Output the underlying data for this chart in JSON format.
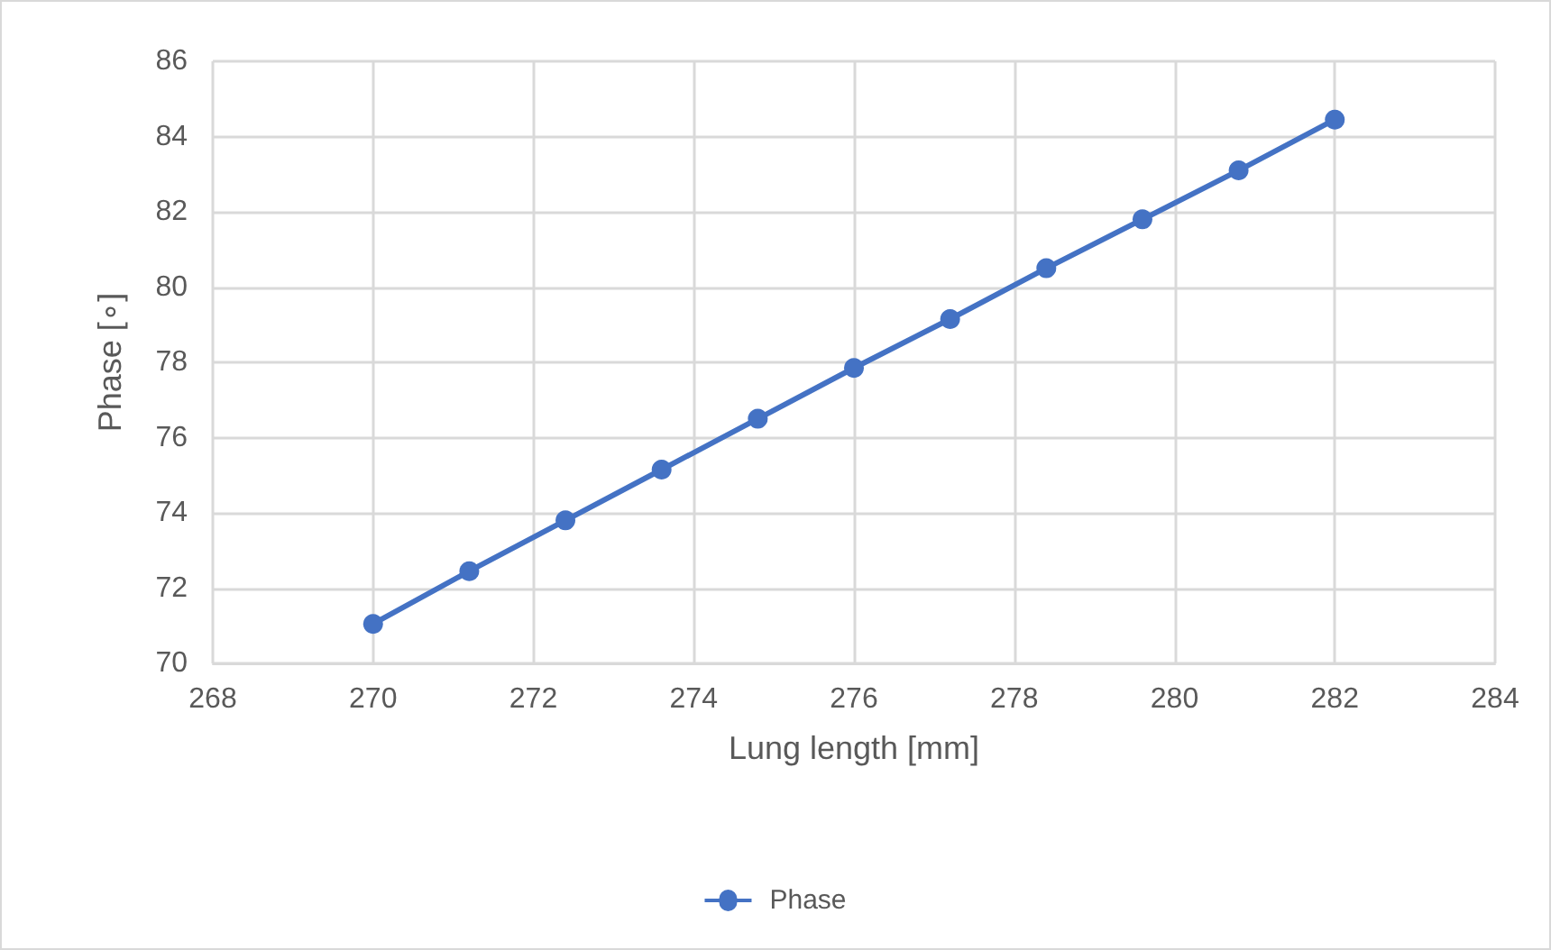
{
  "chart_data": {
    "type": "line",
    "xlabel": "Lung length [mm]",
    "ylabel": "Phase [∘]",
    "series": [
      {
        "name": "Phase",
        "color": "#4472c4",
        "x": [
          270,
          271.2,
          272.4,
          273.6,
          274.8,
          276,
          277.2,
          278.4,
          279.6,
          280.8,
          282
        ],
        "values": [
          71.05,
          72.45,
          73.8,
          75.15,
          76.5,
          77.85,
          79.15,
          80.5,
          81.8,
          83.1,
          84.45
        ]
      }
    ],
    "xlim": [
      268,
      284
    ],
    "xticks": [
      268,
      270,
      272,
      274,
      276,
      278,
      280,
      282,
      284
    ],
    "ylim": [
      70,
      86
    ],
    "yticks": [
      70,
      72,
      74,
      76,
      78,
      80,
      82,
      84,
      86
    ],
    "grid": true,
    "legend": "bottom",
    "marker": "circle",
    "line_style": "solid"
  }
}
